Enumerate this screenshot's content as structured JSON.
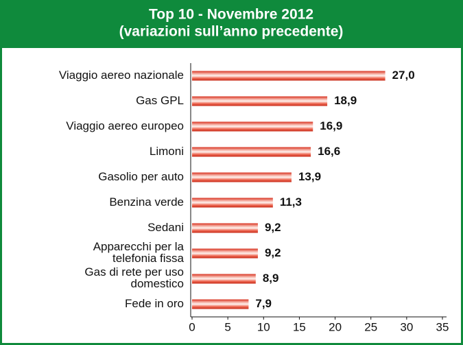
{
  "chart_data": {
    "type": "barh",
    "title": "Top 10 - Novembre 2012",
    "subtitle": "(variazioni sull’anno precedente)",
    "categories": [
      "Viaggio aereo nazionale",
      "Gas GPL",
      "Viaggio aereo europeo",
      "Limoni",
      "Gasolio per auto",
      "Benzina verde",
      "Sedani",
      "Apparecchi per la\ntelefonia fissa",
      "Gas di rete per uso\ndomestico",
      "Fede in oro"
    ],
    "values": [
      27.0,
      18.9,
      16.9,
      16.6,
      13.9,
      11.3,
      9.2,
      9.2,
      8.9,
      7.9
    ],
    "value_labels": [
      "27,0",
      "18,9",
      "16,9",
      "16,6",
      "13,9",
      "11,3",
      "9,2",
      "9,2",
      "8,9",
      "7,9"
    ],
    "color": "#e8402f",
    "xlim": [
      0,
      35
    ],
    "xticks": [
      0,
      5,
      10,
      15,
      20,
      25,
      30,
      35
    ],
    "grid": false
  }
}
